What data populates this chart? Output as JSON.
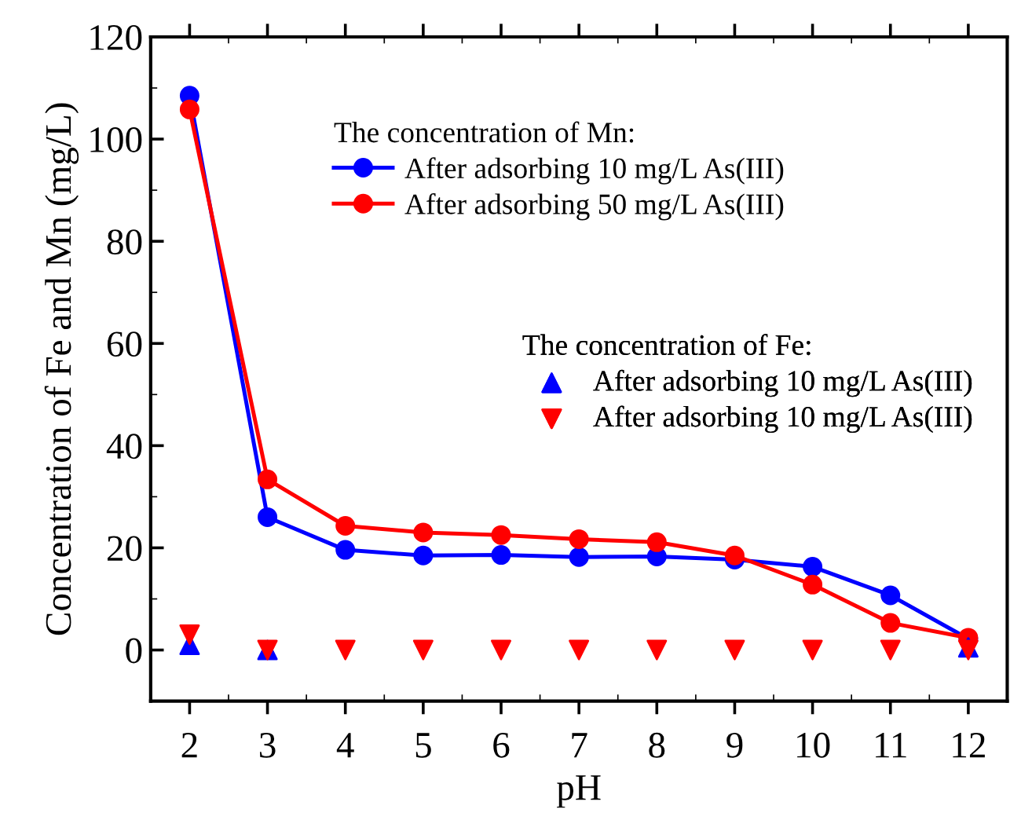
{
  "chart_data": {
    "type": "line",
    "xlabel": "pH",
    "ylabel": "Concentration of Fe and Mn (mg/L)",
    "x": [
      2,
      3,
      4,
      5,
      6,
      7,
      8,
      9,
      10,
      11,
      12
    ],
    "xlim": [
      1.5,
      12.5
    ],
    "xticks": [
      2,
      3,
      4,
      5,
      6,
      7,
      8,
      9,
      10,
      11,
      12
    ],
    "ylim": [
      -10,
      120
    ],
    "yticks": [
      0,
      20,
      40,
      60,
      80,
      100,
      120
    ],
    "grid": false,
    "legend": "top right",
    "annotations": [
      "The concentration of Mn:",
      "The concentration of Fe:"
    ],
    "series": [
      {
        "name": "After adsorbing 10 mg/L As(III)",
        "color": "#0000ff",
        "marker": "circle",
        "values": [
          108.5,
          26,
          19.6,
          18.5,
          18.6,
          18.2,
          18.3,
          17.7,
          16.3,
          10.7,
          2.2
        ]
      },
      {
        "name": "After adsorbing 50 mg/L As(III)",
        "color": "#ff0000",
        "marker": "circle",
        "values": [
          105.8,
          33.4,
          24.3,
          23,
          22.5,
          21.7,
          21.1,
          18.5,
          12.8,
          5.3,
          2.4
        ]
      },
      {
        "name": "After adsorbing 10 mg/L As(III)",
        "color": "#0000ff",
        "type": "scatter",
        "marker": "triangle",
        "values": [
          1,
          0,
          null,
          null,
          null,
          null,
          null,
          null,
          null,
          null,
          0.5
        ]
      },
      {
        "name": "After adsorbing 10 mg/L As(III)",
        "color": "#ff0000",
        "type": "scatter",
        "marker": "triangle_down",
        "values": [
          3,
          0,
          0,
          0,
          0,
          0,
          0,
          0,
          0,
          0,
          0
        ]
      }
    ]
  }
}
